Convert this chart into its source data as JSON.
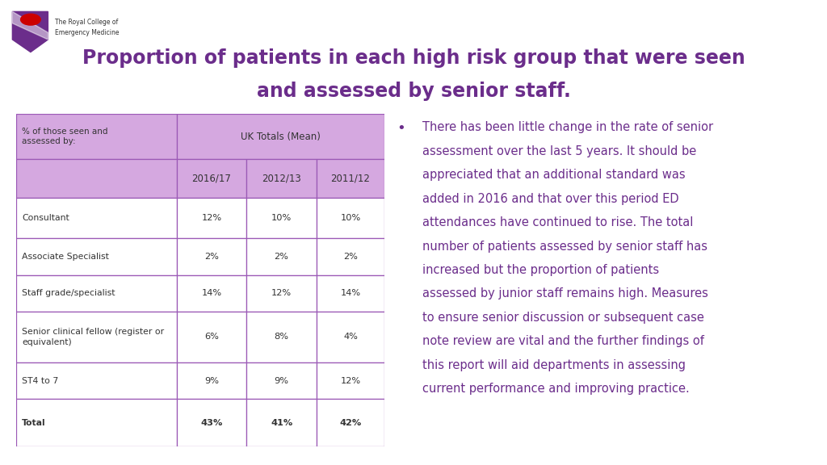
{
  "title_line1": "Proportion of patients in each high risk group that were seen",
  "title_line2": "and assessed by senior staff.",
  "title_color": "#6b2d8b",
  "title_fontsize": 17,
  "bg_color": "#ffffff",
  "table_header_label": "UK Totals (Mean)",
  "table_col_label": "% of those seen and\nassessed by:",
  "columns": [
    "2016/17",
    "2012/13",
    "2011/12"
  ],
  "rows": [
    {
      "label": "Consultant",
      "values": [
        "12%",
        "10%",
        "10%"
      ],
      "bold": false
    },
    {
      "label": "Associate Specialist",
      "values": [
        "2%",
        "2%",
        "2%"
      ],
      "bold": false
    },
    {
      "label": "Staff grade/specialist",
      "values": [
        "14%",
        "12%",
        "14%"
      ],
      "bold": false
    },
    {
      "label": "Senior clinical fellow (register or\nequivalent)",
      "values": [
        "6%",
        "8%",
        "4%"
      ],
      "bold": false
    },
    {
      "label": "ST4 to 7",
      "values": [
        "9%",
        "9%",
        "12%"
      ],
      "bold": false
    },
    {
      "label": "Total",
      "values": [
        "43%",
        "41%",
        "42%"
      ],
      "bold": true
    }
  ],
  "table_border_color": "#9b59b6",
  "table_header_bg": "#d5a8e0",
  "table_cell_bg": "#ffffff",
  "bullet_text_lines": [
    "There has been little change in the rate of senior",
    "assessment over the last 5 years. It should be",
    "appreciated that an additional standard was",
    "added in 2016 and that over this period ED",
    "attendances have continued to rise. The total",
    "number of patients assessed by senior staff has",
    "increased but the proportion of patients",
    "assessed by junior staff remains high. Measures",
    "to ensure senior discussion or subsequent case",
    "note review are vital and the further findings of",
    "this report will aid departments in assessing",
    "current performance and improving practice."
  ],
  "bullet_text_color": "#6b2d8b",
  "bullet_fontsize": 10.5,
  "logo_text1": "The Royal College of",
  "logo_text2": "Emergency Medicine",
  "shield_color": "#6b2d8b",
  "poppy_color": "#cc0000"
}
